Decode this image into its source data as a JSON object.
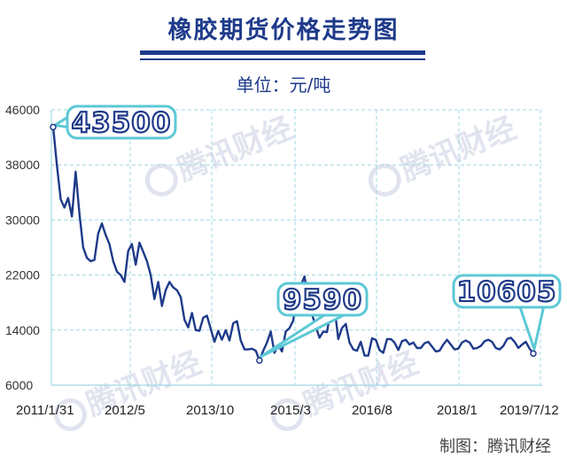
{
  "header": {
    "title": "橡胶期货价格走势图",
    "unit": "单位：元/吨"
  },
  "footer": {
    "credit": "制图：腾讯财经"
  },
  "watermark": {
    "text": "腾讯财经"
  },
  "colors": {
    "title": "#1e3a8a",
    "line": "#1e3a8a",
    "grid": "#9fd8e3",
    "callout_border": "#5cc8d6"
  },
  "chart_data": {
    "type": "line",
    "title": "橡胶期货价格走势图",
    "unit": "元/吨",
    "ylim": [
      6000,
      46000
    ],
    "y_ticks": [
      "46000",
      "38000",
      "30000",
      "22000",
      "14000",
      "6000"
    ],
    "x_ticks": [
      "2011/1/31",
      "2012/5",
      "2013/10",
      "2015/3",
      "2016/8",
      "2018/1",
      "2019/7/12"
    ],
    "grid": true,
    "values": [
      43500,
      38000,
      33000,
      31800,
      33200,
      30500,
      37000,
      31000,
      26000,
      24500,
      24000,
      24200,
      28000,
      29500,
      27800,
      26500,
      24000,
      22500,
      22000,
      21000,
      25500,
      26500,
      23500,
      26700,
      25400,
      24000,
      22000,
      18500,
      21000,
      17500,
      19800,
      21000,
      20200,
      19800,
      18800,
      15500,
      14400,
      16500,
      14000,
      13900,
      15800,
      16100,
      14200,
      12300,
      13900,
      12600,
      14000,
      12500,
      15000,
      15300,
      12500,
      11200,
      11200,
      11300,
      11000,
      9590,
      11000,
      12200,
      13800,
      10700,
      11800,
      10900,
      13800,
      14300,
      15400,
      19500,
      20500,
      21800,
      18500,
      16300,
      14500,
      12900,
      13800,
      13700,
      17000,
      17300,
      12700,
      14300,
      14900,
      12200,
      11200,
      11000,
      12300,
      10300,
      10300,
      12800,
      12600,
      11100,
      10700,
      12700,
      12700,
      12200,
      11100,
      12400,
      12600,
      11900,
      12200,
      11400,
      11400,
      12100,
      12300,
      11600,
      10900,
      11000,
      11900,
      12600,
      11900,
      11200,
      11300,
      12200,
      12500,
      12200,
      11300,
      11400,
      11700,
      12400,
      12600,
      12300,
      11400,
      11200,
      11700,
      12700,
      12900,
      12300,
      11400,
      11900,
      12300,
      11300,
      10605
    ],
    "annotations": [
      {
        "label": "43500",
        "value": 43500,
        "index": 0
      },
      {
        "label": "9590",
        "value": 9590,
        "index": 55
      },
      {
        "label": "10605",
        "value": 10605,
        "index": 128
      }
    ]
  }
}
